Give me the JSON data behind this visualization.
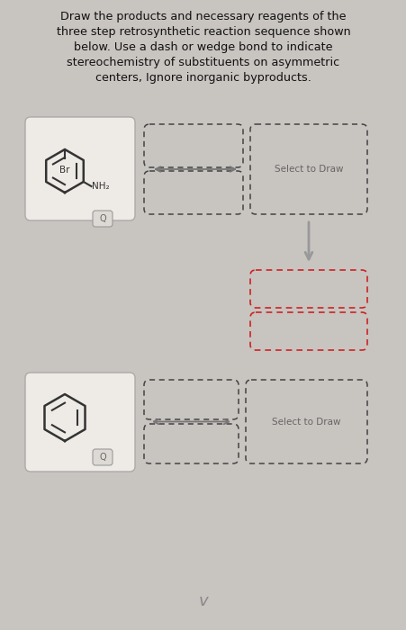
{
  "title_text": "Draw the products and necessary reagents of the\nthree step retrosynthetic reaction sequence shown\nbelow. Use a dash or wedge bond to indicate\nstereochemistry of substituents on asymmetric\ncenters, Ignore inorganic byproducts.",
  "title_fontsize": 9.2,
  "bg_color": "#c8c4c0",
  "paper_color": "#e8e5e1",
  "text_color": "#111111",
  "dark_dash_color": "#444444",
  "red_dash_color": "#cc2222",
  "gray_text": "#666666",
  "select_to_draw": "Select to Draw",
  "select_fontsize": 7.5,
  "mol1_br": "Br",
  "mol1_nh2": "NH₂",
  "arrow_color": "#888888",
  "mol_line_color": "#333333"
}
